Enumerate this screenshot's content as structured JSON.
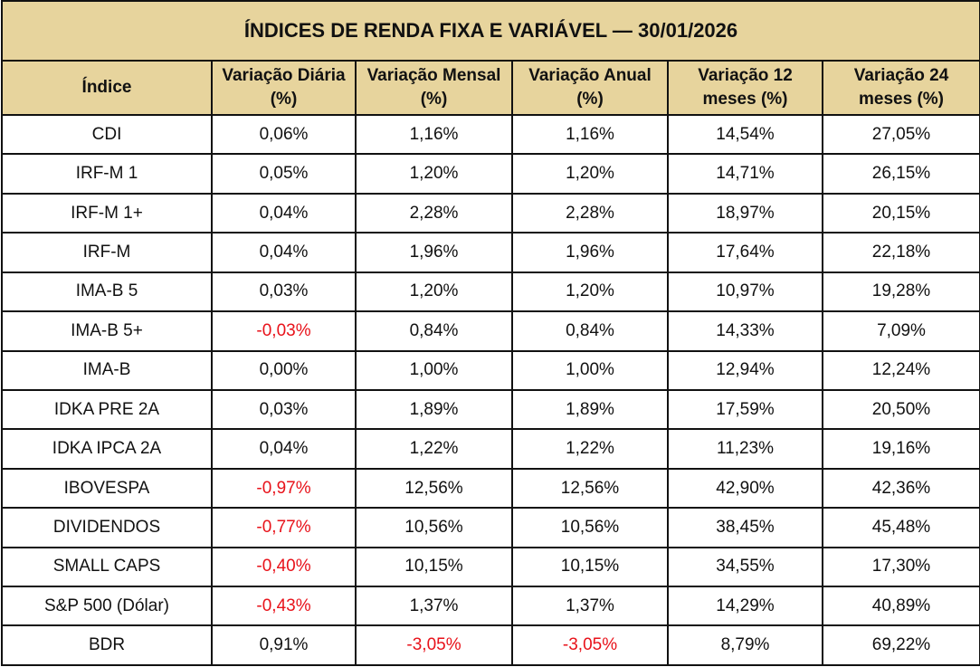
{
  "table": {
    "title": "ÍNDICES DE RENDA FIXA E VARIÁVEL — 30/01/2026",
    "header": [
      "Índice",
      "Variação Diária (%)",
      "Variação Mensal (%)",
      "Variação Anual (%)",
      "Variação 12 meses (%)",
      "Variação 24 meses (%)"
    ],
    "rows": [
      [
        "CDI",
        "0,06%",
        "1,16%",
        "1,16%",
        "14,54%",
        "27,05%"
      ],
      [
        "IRF-M 1",
        "0,05%",
        "1,20%",
        "1,20%",
        "14,71%",
        "26,15%"
      ],
      [
        "IRF-M 1+",
        "0,04%",
        "2,28%",
        "2,28%",
        "18,97%",
        "20,15%"
      ],
      [
        "IRF-M",
        "0,04%",
        "1,96%",
        "1,96%",
        "17,64%",
        "22,18%"
      ],
      [
        "IMA-B 5",
        "0,03%",
        "1,20%",
        "1,20%",
        "10,97%",
        "19,28%"
      ],
      [
        "IMA-B 5+",
        "-0,03%",
        "0,84%",
        "0,84%",
        "14,33%",
        "7,09%"
      ],
      [
        "IMA-B",
        "0,00%",
        "1,00%",
        "1,00%",
        "12,94%",
        "12,24%"
      ],
      [
        "IDKA PRE 2A",
        "0,03%",
        "1,89%",
        "1,89%",
        "17,59%",
        "20,50%"
      ],
      [
        "IDKA IPCA 2A",
        "0,04%",
        "1,22%",
        "1,22%",
        "11,23%",
        "19,16%"
      ],
      [
        "IBOVESPA",
        "-0,97%",
        "12,56%",
        "12,56%",
        "42,90%",
        "42,36%"
      ],
      [
        "DIVIDENDOS",
        "-0,77%",
        "10,56%",
        "10,56%",
        "38,45%",
        "45,48%"
      ],
      [
        "SMALL CAPS",
        "-0,40%",
        "10,15%",
        "10,15%",
        "34,55%",
        "17,30%"
      ],
      [
        "S&P 500 (Dólar)",
        "-0,43%",
        "1,37%",
        "1,37%",
        "14,29%",
        "40,89%"
      ],
      [
        "BDR",
        "0,91%",
        "-3,05%",
        "-3,05%",
        "8,79%",
        "69,22%"
      ]
    ]
  }
}
